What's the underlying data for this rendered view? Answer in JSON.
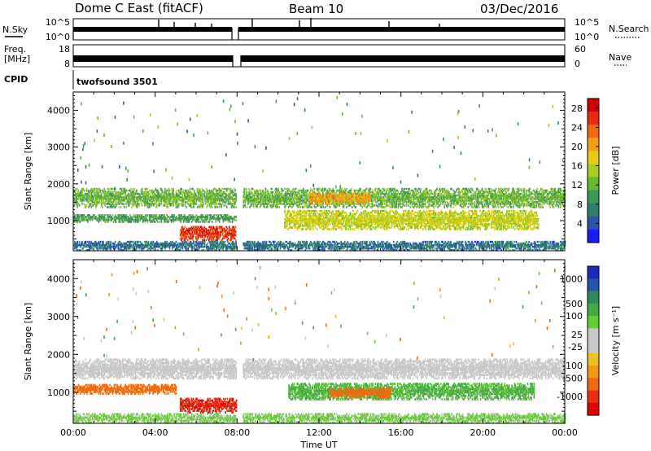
{
  "header": {
    "title": "Dome C East (fitACF)",
    "beam": "Beam 10",
    "date": "03/Dec/2016"
  },
  "strip_panels": {
    "nsky_label": "N.Sky",
    "nsearch_label": "N.Search",
    "noise_ticks": [
      "10^5",
      "10^0"
    ],
    "freq_label_top": "Freq.",
    "freq_label_unit": "[MHz]",
    "freq_ticks": [
      "18",
      "8"
    ],
    "nave_label": "Nave",
    "nave_ticks": [
      "60",
      "0"
    ],
    "cpid_label": "CPID",
    "cpid_value": "twofsound 3501"
  },
  "chart_data": [
    {
      "type": "heatmap",
      "name": "power",
      "ylabel": "Slant Range [km]",
      "xlabel": "",
      "ylim": [
        180,
        4500
      ],
      "yticks": [
        1000,
        2000,
        3000,
        4000
      ],
      "xlim": [
        0,
        24
      ],
      "colorbar": {
        "label": "Power [dB]",
        "ticks": [
          4,
          8,
          12,
          16,
          20,
          24,
          28
        ],
        "range": [
          0,
          30
        ],
        "colors": [
          "#1a1aff",
          "#2a55aa",
          "#2e7f6e",
          "#3a9a55",
          "#66bb33",
          "#a8cc22",
          "#e8cc10",
          "#f0a010",
          "#f06a10",
          "#e82a10",
          "#d00000"
        ]
      },
      "bands": [
        {
          "t0": 0.0,
          "t1": 24.0,
          "r0": 1350,
          "r1": 1850,
          "value": 12
        },
        {
          "t0": 0.0,
          "t1": 8.0,
          "r0": 950,
          "r1": 1150,
          "value": 10
        },
        {
          "t0": 5.2,
          "t1": 7.9,
          "r0": 450,
          "r1": 850,
          "value": 26
        },
        {
          "t0": 10.3,
          "t1": 22.7,
          "r0": 750,
          "r1": 1250,
          "value": 16
        },
        {
          "t0": 11.5,
          "t1": 14.5,
          "r0": 1450,
          "r1": 1750,
          "value": 20
        },
        {
          "t0": 0.0,
          "t1": 24.0,
          "r0": 180,
          "r1": 420,
          "value": 6
        }
      ]
    },
    {
      "type": "heatmap",
      "name": "velocity",
      "ylabel": "Slant Range [km]",
      "xlabel": "Time UT",
      "ylim": [
        180,
        4500
      ],
      "yticks": [
        1000,
        2000,
        3000,
        4000
      ],
      "xlim": [
        0,
        24
      ],
      "xtick_labels": [
        "00:00",
        "04:00",
        "08:00",
        "12:00",
        "16:00",
        "20:00",
        "00:00"
      ],
      "colorbar": {
        "label": "Velocity [m s⁻¹]",
        "ticks": [
          "1000",
          "500",
          "100",
          "25",
          "-25",
          "-100",
          "-500",
          "-1000"
        ],
        "colors": [
          "#1a2ab8",
          "#2455aa",
          "#2e8a5a",
          "#44aa44",
          "#66cc33",
          "#c8c8c8",
          "#c8c8c8",
          "#f0c020",
          "#f09a10",
          "#f06a10",
          "#e83010",
          "#e00000"
        ]
      },
      "bands": [
        {
          "t0": 0.0,
          "t1": 24.0,
          "r0": 1350,
          "r1": 1850,
          "value": 0
        },
        {
          "t0": 0.0,
          "t1": 5.0,
          "r0": 950,
          "r1": 1200,
          "value": -150
        },
        {
          "t0": 5.2,
          "t1": 8.0,
          "r0": 450,
          "r1": 850,
          "value": -450
        },
        {
          "t0": 10.5,
          "t1": 22.5,
          "r0": 800,
          "r1": 1250,
          "value": 110
        },
        {
          "t0": 12.5,
          "t1": 15.5,
          "r0": 850,
          "r1": 1100,
          "value": -150
        },
        {
          "t0": 0.0,
          "t1": 24.0,
          "r0": 180,
          "r1": 420,
          "value": 60
        }
      ]
    }
  ]
}
